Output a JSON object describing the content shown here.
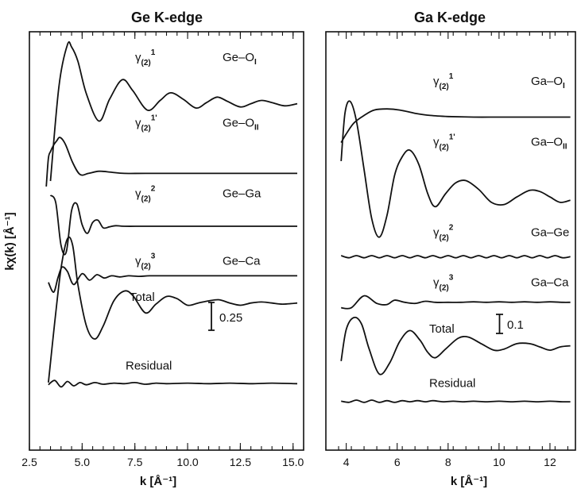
{
  "chart_data": [
    {
      "type": "line",
      "title": "Ge K-edge",
      "xlabel": "k [Å⁻¹]",
      "ylabel": "kχ(k) [Å⁻¹]",
      "xlim": [
        2.5,
        15.5
      ],
      "xticks": [
        "2.5",
        "5.0",
        "7.5",
        "10.0",
        "12.5",
        "15.0"
      ],
      "scale_bar": "0.25",
      "series": [
        {
          "name": "Ge–O",
          "sub": "I",
          "path_label": "γ(2) 1",
          "x": [
            3.5,
            3.9,
            4.3,
            4.5,
            4.8,
            5.2,
            5.8,
            6.3,
            6.9,
            7.4,
            8.1,
            8.7,
            9.2,
            9.8,
            10.4,
            10.9,
            11.4,
            11.9,
            12.5,
            13.0,
            13.5,
            14.0,
            14.6,
            15.2
          ],
          "y": [
            0.75,
            1.62,
            2.0,
            1.98,
            1.85,
            1.55,
            1.3,
            1.5,
            1.68,
            1.58,
            1.4,
            1.49,
            1.56,
            1.5,
            1.42,
            1.47,
            1.52,
            1.48,
            1.43,
            1.46,
            1.49,
            1.47,
            1.44,
            1.46
          ]
        },
        {
          "name": "Ge–O",
          "sub": "II",
          "path_label": "γ(2) 1'",
          "x": [
            3.3,
            3.4,
            3.5,
            3.65,
            3.8,
            3.95,
            4.2,
            4.55,
            4.9,
            5.3,
            5.8,
            6.4,
            7.0,
            8.0,
            10.0,
            12.5,
            15.2
          ],
          "y": [
            0.7,
            0.96,
            1.02,
            1.08,
            1.12,
            1.15,
            1.09,
            0.92,
            0.81,
            0.82,
            0.84,
            0.83,
            0.82,
            0.82,
            0.82,
            0.82,
            0.82
          ]
        },
        {
          "name": "Ge–Ga",
          "sub": "",
          "path_label": "γ(2) 2",
          "x": [
            3.5,
            3.75,
            4.0,
            4.25,
            4.5,
            4.75,
            5.0,
            5.25,
            5.5,
            5.75,
            6.0,
            6.3,
            6.6,
            7.0,
            8.0,
            10.0,
            12.5,
            15.2
          ],
          "y": [
            0.62,
            0.55,
            0.16,
            0.1,
            0.48,
            0.54,
            0.35,
            0.27,
            0.37,
            0.39,
            0.32,
            0.33,
            0.34,
            0.335,
            0.335,
            0.335,
            0.335,
            0.335
          ]
        },
        {
          "name": "Ge–Ca",
          "sub": "",
          "path_label": "γ(2) 3",
          "x": [
            3.4,
            3.65,
            3.85,
            4.05,
            4.3,
            4.6,
            5.0,
            5.35,
            5.7,
            6.05,
            6.4,
            6.8,
            7.2,
            7.7,
            8.2,
            9.0,
            10.0,
            12.5,
            15.2
          ],
          "y": [
            -0.18,
            -0.27,
            -0.14,
            -0.04,
            -0.08,
            -0.2,
            -0.1,
            -0.16,
            -0.11,
            -0.14,
            -0.12,
            -0.13,
            -0.12,
            -0.125,
            -0.12,
            -0.12,
            -0.12,
            -0.12,
            -0.12
          ]
        },
        {
          "name": "Total",
          "sub": "",
          "path_label": "",
          "x": [
            3.4,
            3.7,
            4.0,
            4.3,
            4.55,
            4.8,
            5.2,
            5.6,
            6.0,
            6.5,
            7.0,
            7.4,
            8.0,
            8.5,
            9.0,
            9.5,
            10.0,
            10.5,
            11.0,
            11.5,
            12.0,
            12.5,
            13.0,
            13.5,
            14.0,
            14.5,
            15.2
          ],
          "y": [
            -1.1,
            -0.55,
            -0.05,
            0.22,
            0.16,
            -0.2,
            -0.58,
            -0.7,
            -0.58,
            -0.35,
            -0.26,
            -0.3,
            -0.46,
            -0.38,
            -0.31,
            -0.33,
            -0.39,
            -0.37,
            -0.35,
            -0.34,
            -0.37,
            -0.39,
            -0.37,
            -0.36,
            -0.37,
            -0.38,
            -0.37
          ]
        },
        {
          "name": "Residual",
          "sub": "",
          "path_label": "",
          "x": [
            3.4,
            3.7,
            4.0,
            4.3,
            4.6,
            4.9,
            5.2,
            5.6,
            6.0,
            6.5,
            7.0,
            7.5,
            8.0,
            8.5,
            9.0,
            10.0,
            11.0,
            12.0,
            13.0,
            14.0,
            15.2
          ],
          "y": [
            -1.12,
            -1.08,
            -1.14,
            -1.09,
            -1.13,
            -1.1,
            -1.12,
            -1.1,
            -1.115,
            -1.105,
            -1.11,
            -1.1,
            -1.115,
            -1.105,
            -1.11,
            -1.105,
            -1.11,
            -1.105,
            -1.11,
            -1.105,
            -1.11
          ]
        }
      ]
    },
    {
      "type": "line",
      "title": "Ga K-edge",
      "xlabel": "k [Å⁻¹]",
      "ylabel": "",
      "xlim": [
        3.2,
        13.0
      ],
      "xticks": [
        "4",
        "6",
        "8",
        "10",
        "12"
      ],
      "scale_bar": "0.1",
      "series": [
        {
          "name": "Ga–O",
          "sub": "I",
          "path_label": "γ(2) 1",
          "x": [
            3.8,
            4.0,
            4.3,
            4.7,
            5.1,
            5.6,
            6.1,
            6.7,
            7.3,
            8.0,
            9.0,
            10.0,
            11.0,
            12.0,
            12.8
          ],
          "y": [
            0.75,
            0.83,
            0.93,
            1.0,
            1.05,
            1.06,
            1.05,
            1.02,
            1.0,
            0.99,
            0.985,
            0.985,
            0.985,
            0.985,
            0.985
          ]
        },
        {
          "name": "Ga–O",
          "sub": "II",
          "path_label": "γ(2) 1'",
          "x": [
            3.8,
            3.95,
            4.15,
            4.4,
            4.7,
            5.0,
            5.3,
            5.6,
            5.9,
            6.2,
            6.5,
            6.85,
            7.2,
            7.5,
            7.9,
            8.3,
            8.7,
            9.2,
            9.7,
            10.2,
            10.7,
            11.2,
            11.6,
            12.0,
            12.4,
            12.8
          ],
          "y": [
            0.58,
            1.02,
            1.13,
            0.95,
            0.5,
            0.05,
            -0.12,
            0.08,
            0.45,
            0.62,
            0.68,
            0.55,
            0.28,
            0.16,
            0.28,
            0.38,
            0.4,
            0.32,
            0.2,
            0.18,
            0.25,
            0.31,
            0.3,
            0.25,
            0.2,
            0.22
          ]
        },
        {
          "name": "Ga–Ge",
          "sub": "",
          "path_label": "γ(2) 2",
          "x": [
            3.8,
            4.1,
            4.4,
            4.7,
            5.0,
            5.3,
            5.6,
            5.9,
            6.2,
            6.5,
            6.8,
            7.1,
            7.4,
            7.7,
            8.0,
            8.3,
            8.6,
            8.9,
            9.2,
            9.5,
            9.8,
            10.1,
            10.4,
            10.7,
            11.0,
            11.3,
            11.6,
            11.9,
            12.2,
            12.5,
            12.8
          ],
          "y": [
            -0.29,
            -0.31,
            -0.29,
            -0.31,
            -0.29,
            -0.31,
            -0.29,
            -0.31,
            -0.29,
            -0.31,
            -0.29,
            -0.31,
            -0.29,
            -0.31,
            -0.29,
            -0.31,
            -0.29,
            -0.31,
            -0.29,
            -0.31,
            -0.29,
            -0.31,
            -0.29,
            -0.31,
            -0.29,
            -0.31,
            -0.29,
            -0.31,
            -0.29,
            -0.31,
            -0.3
          ]
        },
        {
          "name": "Ga–Ca",
          "sub": "",
          "path_label": "γ(2) 3",
          "x": [
            3.8,
            4.2,
            4.7,
            5.2,
            5.6,
            5.9,
            6.3,
            6.7,
            7.1,
            7.5,
            8.0,
            8.5,
            9.0,
            9.5,
            10.0,
            10.5,
            11.0,
            11.5,
            12.0,
            12.5,
            12.8
          ],
          "y": [
            -0.77,
            -0.77,
            -0.66,
            -0.73,
            -0.74,
            -0.7,
            -0.72,
            -0.73,
            -0.71,
            -0.72,
            -0.72,
            -0.72,
            -0.715,
            -0.72,
            -0.715,
            -0.72,
            -0.715,
            -0.72,
            -0.715,
            -0.72,
            -0.72
          ]
        },
        {
          "name": "Total",
          "sub": "",
          "path_label": "",
          "x": [
            3.8,
            4.0,
            4.3,
            4.6,
            4.9,
            5.3,
            5.7,
            6.1,
            6.5,
            6.9,
            7.2,
            7.5,
            7.9,
            8.4,
            8.8,
            9.3,
            9.8,
            10.2,
            10.7,
            11.2,
            11.6,
            12.0,
            12.4,
            12.8
          ],
          "y": [
            -1.26,
            -0.97,
            -0.86,
            -0.92,
            -1.15,
            -1.38,
            -1.28,
            -1.08,
            -0.98,
            -1.07,
            -1.18,
            -1.23,
            -1.15,
            -1.05,
            -1.04,
            -1.1,
            -1.16,
            -1.15,
            -1.1,
            -1.1,
            -1.13,
            -1.16,
            -1.13,
            -1.12
          ]
        },
        {
          "name": "Residual",
          "sub": "",
          "path_label": "",
          "x": [
            3.8,
            4.1,
            4.4,
            4.7,
            5.0,
            5.3,
            5.6,
            5.9,
            6.2,
            6.5,
            6.8,
            7.1,
            7.4,
            7.8,
            8.2,
            8.6,
            9.0,
            9.5,
            10.0,
            10.5,
            11.0,
            11.5,
            12.0,
            12.5,
            12.8
          ],
          "y": [
            -1.63,
            -1.64,
            -1.62,
            -1.64,
            -1.62,
            -1.64,
            -1.625,
            -1.64,
            -1.625,
            -1.635,
            -1.625,
            -1.635,
            -1.625,
            -1.635,
            -1.63,
            -1.635,
            -1.63,
            -1.635,
            -1.63,
            -1.635,
            -1.63,
            -1.635,
            -1.63,
            -1.635,
            -1.635
          ]
        }
      ]
    }
  ]
}
